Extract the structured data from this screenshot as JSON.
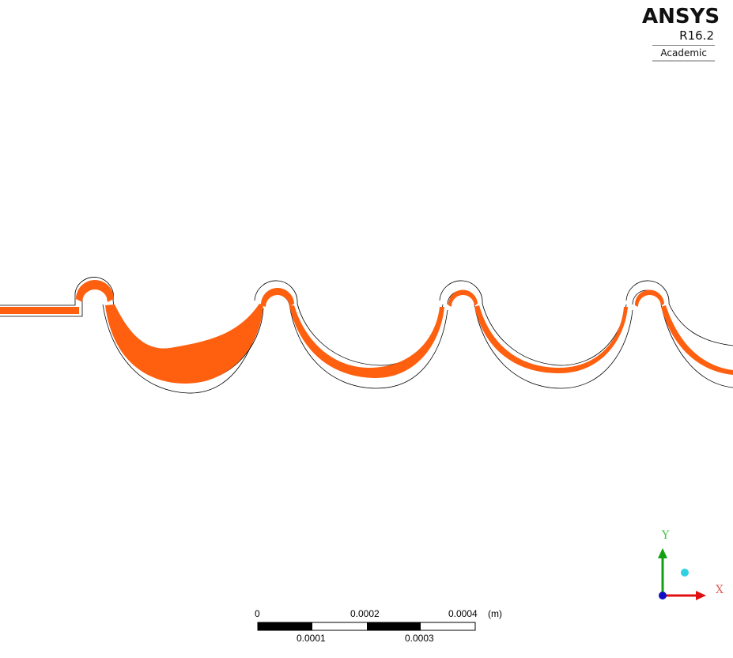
{
  "logo": {
    "brand": "ANSYS",
    "version": "R16.2",
    "edition": "Academic"
  },
  "scale_bar": {
    "unit": "(m)",
    "top_labels": [
      "0",
      "0.0002",
      "0.0004"
    ],
    "bottom_labels": [
      "0.0001",
      "0.0003"
    ]
  },
  "axis_triad": {
    "y_label": "Y",
    "x_label": "X",
    "colors": {
      "y": "#12a012",
      "x": "#e01010",
      "origin": "#1010c0",
      "sphere": "#30d0e0"
    }
  },
  "view": {
    "particle_color": "#ff6010",
    "outline_color": "#000000"
  }
}
